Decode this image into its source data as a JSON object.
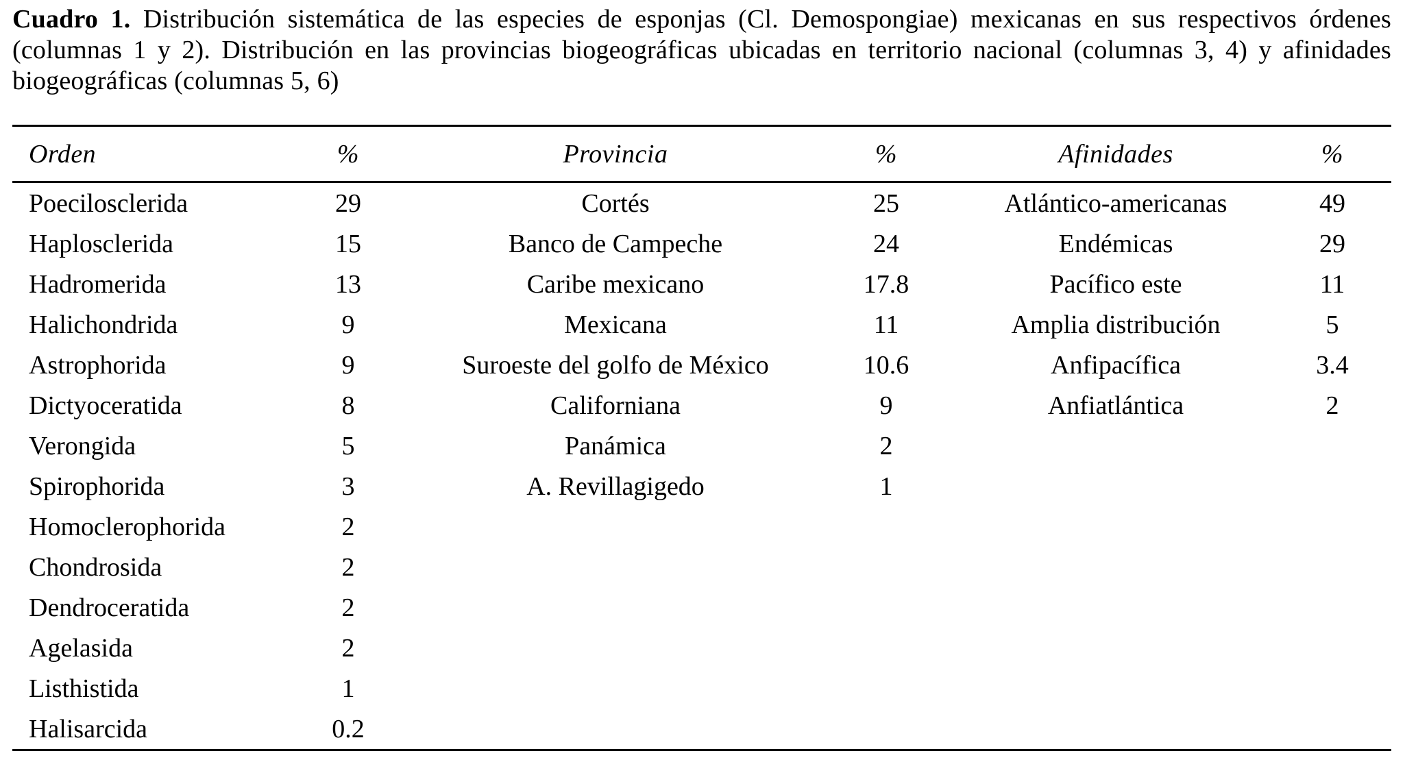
{
  "colors": {
    "background": "#ffffff",
    "text": "#000000",
    "rule": "#000000"
  },
  "caption": {
    "label": "Cuadro 1.",
    "text": " Distribución sistemática de las especies de esponjas (Cl. Demospongiae) mexicanas en sus respectivos órdenes (columnas 1 y 2). Distribución en las provincias biogeográficas ubicadas en territorio nacional (columnas 3, 4) y afinidades biogeográficas (columnas 5, 6)"
  },
  "table": {
    "headers": [
      "Orden",
      "%",
      "Provincia",
      "%",
      "Afinidades",
      "%"
    ],
    "rows": [
      [
        "Poecilosclerida",
        "29",
        "Cortés",
        "25",
        "Atlántico-americanas",
        "49"
      ],
      [
        "Haplosclerida",
        "15",
        "Banco de Campeche",
        "24",
        "Endémicas",
        "29"
      ],
      [
        "Hadromerida",
        "13",
        "Caribe mexicano",
        "17.8",
        "Pacífico este",
        "11"
      ],
      [
        "Halichondrida",
        "9",
        "Mexicana",
        "11",
        "Amplia distribución",
        "5"
      ],
      [
        "Astrophorida",
        "9",
        "Suroeste del golfo de México",
        "10.6",
        "Anfipacífica",
        "3.4"
      ],
      [
        "Dictyoceratida",
        "8",
        "Californiana",
        "9",
        "Anfiatlántica",
        "2"
      ],
      [
        "Verongida",
        "5",
        "Panámica",
        "2",
        "",
        ""
      ],
      [
        "Spirophorida",
        "3",
        "A. Revillagigedo",
        "1",
        "",
        ""
      ],
      [
        "Homoclerophorida",
        "2",
        "",
        "",
        "",
        ""
      ],
      [
        "Chondrosida",
        "2",
        "",
        "",
        "",
        ""
      ],
      [
        "Dendroceratida",
        "2",
        "",
        "",
        "",
        ""
      ],
      [
        "Agelasida",
        "2",
        "",
        "",
        "",
        ""
      ],
      [
        "Listhistida",
        "1",
        "",
        "",
        "",
        ""
      ],
      [
        "Halisarcida",
        "0.2",
        "",
        "",
        "",
        ""
      ]
    ]
  }
}
